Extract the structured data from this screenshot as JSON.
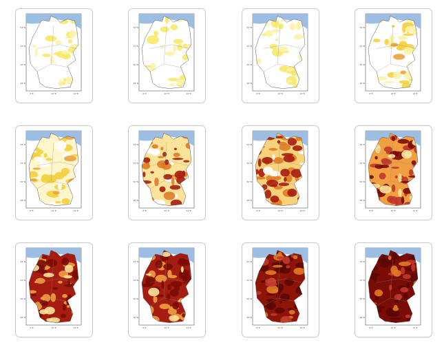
{
  "map_ticks": {
    "lat": [
      "54°N",
      "52°N",
      "50°N",
      "48°N"
    ],
    "lon": [
      "6°E",
      "10°E",
      "14°E"
    ]
  }
}
